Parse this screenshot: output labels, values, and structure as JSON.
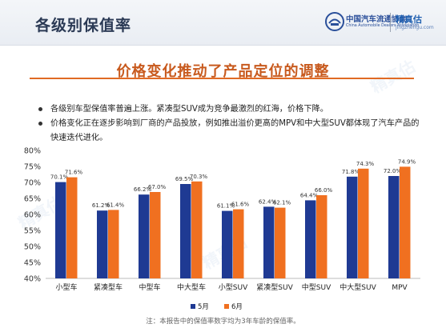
{
  "header": {
    "title": "各级别保值率",
    "association_cn": "中国汽车流通协会",
    "association_en": "China Automobile Dealers Association",
    "brand_name": "精真估",
    "brand_url": "jingzhengu.com"
  },
  "subtitle": "价格变化推动了产品定位的调整",
  "bullets": [
    "各级别车型保值率普遍上涨。紧凑型SUV成为竞争最激烈的红海，价格下降。",
    "价格变化正在逐步影响到厂商的产品投放，例如推出溢价更高的MPV和中大型SUV都体现了汽车产品的快速迭代进化。"
  ],
  "footnote": "注：本报告中的保值率数字均为3年车龄的保值率。",
  "watermark_text": "精真估",
  "colors": {
    "may": "#1f3a93",
    "june": "#f07020",
    "header_title": "#2b3a55",
    "subtitle": "#c85a1e"
  },
  "chart_data": {
    "type": "bar",
    "categories": [
      "小型车",
      "紧凑型车",
      "中型车",
      "中大型车",
      "小型SUV",
      "紧凑型SUV",
      "中型SUV",
      "中大型SUV",
      "MPV"
    ],
    "series": [
      {
        "name": "5月",
        "values": [
          70.1,
          61.2,
          66.2,
          69.5,
          61.1,
          62.4,
          64.4,
          71.8,
          72.0
        ],
        "labels": [
          "70.1%",
          "61.2%",
          "66.2%",
          "69.5%",
          "61.1%",
          "62.4%",
          "64.4%",
          "71.8%",
          "72.0%"
        ]
      },
      {
        "name": "6月",
        "values": [
          71.6,
          61.4,
          67.0,
          70.3,
          61.6,
          62.1,
          66.0,
          74.3,
          74.9
        ],
        "labels": [
          "71.6%",
          "61.4%",
          "67.0%",
          "70.3%",
          "61.6%",
          "62.1%",
          "66.0%",
          "74.3%",
          "74.9%"
        ]
      }
    ],
    "ylim": [
      40,
      80
    ],
    "yticks": [
      40,
      45,
      50,
      55,
      60,
      65,
      70,
      75,
      80
    ],
    "ytick_labels": [
      "40%",
      "45%",
      "50%",
      "55%",
      "60%",
      "65%",
      "70%",
      "75%",
      "80%"
    ],
    "grid": false,
    "legend": "bottom-center"
  }
}
